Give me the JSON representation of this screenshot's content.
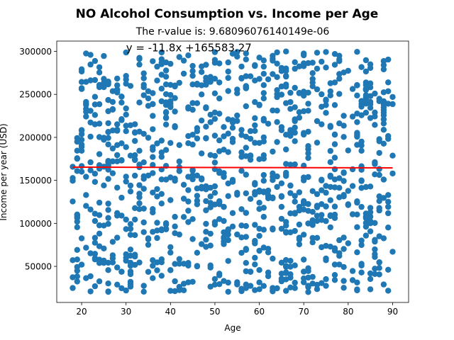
{
  "chart_data": {
    "type": "scatter",
    "title": "NO Alcohol Consumption vs. Income per Age",
    "subtitle": "The r-value is: 9.68096076140149e-06",
    "xlabel": "Age",
    "ylabel": "Income per year (USD)",
    "xlim": [
      14.4,
      93.6
    ],
    "ylim": [
      8050,
      311950
    ],
    "xticks": [
      20,
      30,
      40,
      50,
      60,
      70,
      80,
      90
    ],
    "yticks": [
      50000,
      100000,
      150000,
      200000,
      250000,
      300000
    ],
    "ytick_labels": [
      "50000",
      "100000",
      "150000",
      "200000",
      "250000",
      "300000"
    ],
    "grid": false,
    "point_color": "#1f77b4",
    "regression": {
      "slope": -11.8,
      "intercept": 165583.27,
      "x_range": [
        18,
        90
      ],
      "color": "#ff0000",
      "equation_label": "y = -11.8x +165583.27",
      "label_position_data": [
        30,
        300000
      ]
    },
    "sample_count": 1100,
    "sample_seed": 12345,
    "age_range": [
      18,
      90
    ],
    "income_range": [
      20000,
      300000
    ]
  }
}
